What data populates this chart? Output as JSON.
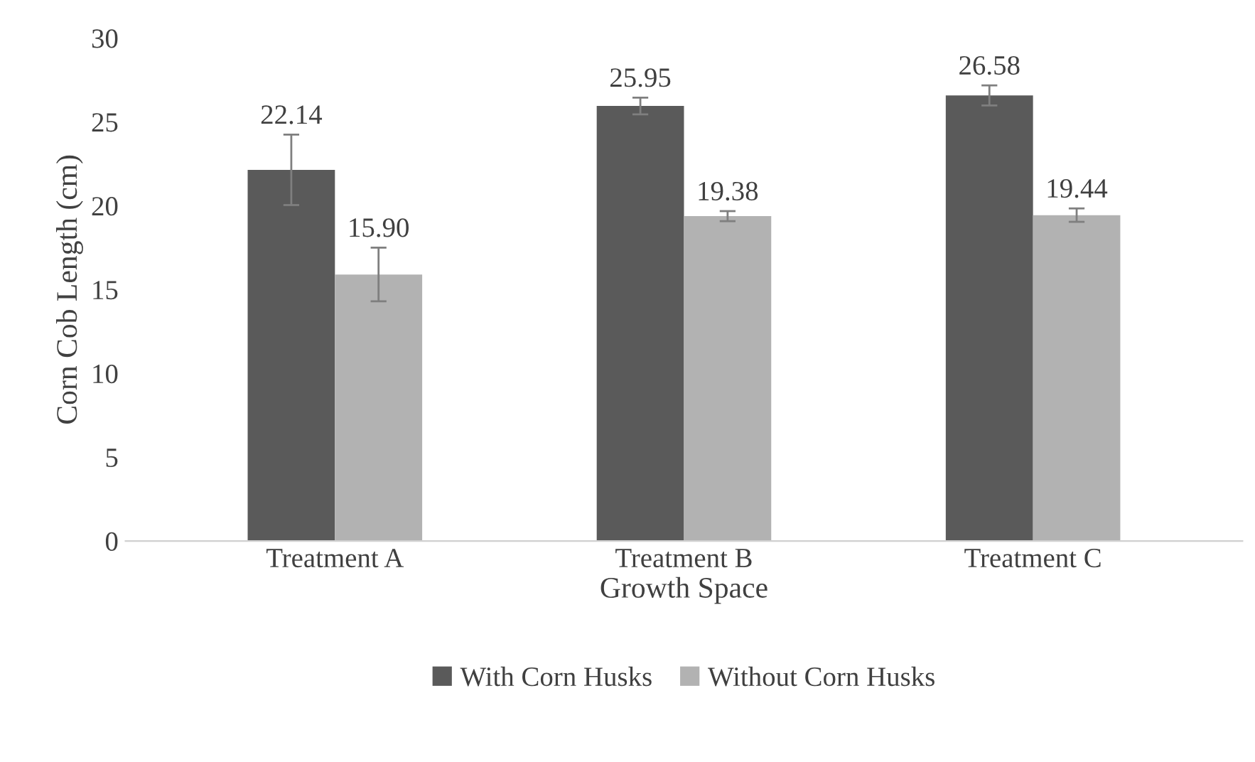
{
  "chart_data": {
    "type": "bar",
    "xlabel": "Growth Space",
    "ylabel": "Corn Cob Length (cm)",
    "categories": [
      "Treatment A",
      "Treatment B",
      "Treatment C"
    ],
    "series": [
      {
        "name": "With Corn Husks",
        "color": "#5a5a5a",
        "values": [
          22.14,
          25.95,
          26.58
        ],
        "errors": [
          2.1,
          0.5,
          0.6
        ],
        "value_labels": [
          "22.14",
          "25.95",
          "26.58"
        ]
      },
      {
        "name": "Without Corn Husks",
        "color": "#b2b2b2",
        "values": [
          15.9,
          19.38,
          19.44
        ],
        "errors": [
          1.6,
          0.3,
          0.4
        ],
        "value_labels": [
          "15.90",
          "19.38",
          "19.44"
        ]
      }
    ],
    "ylim": [
      0,
      30
    ],
    "yticks": [
      0,
      5,
      10,
      15,
      20,
      25,
      30
    ],
    "grid": false,
    "legend": "bottom"
  }
}
